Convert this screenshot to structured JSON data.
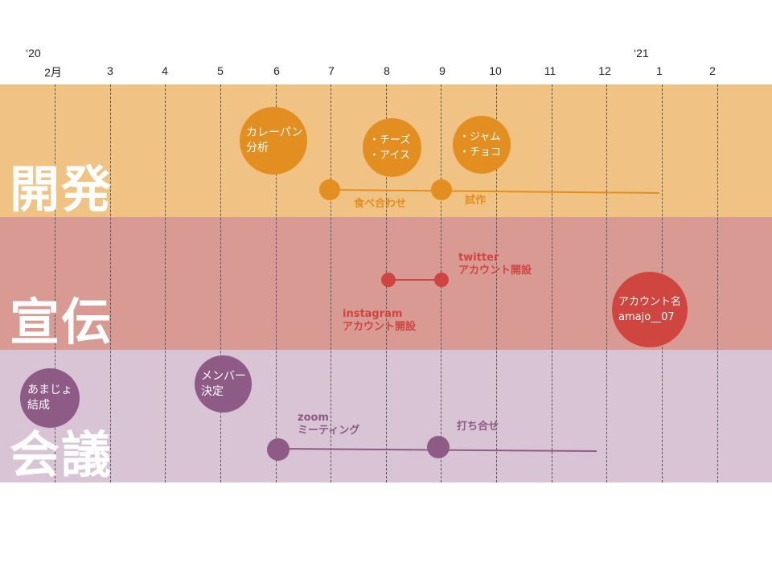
{
  "timeline": {
    "year_start": "‘20",
    "year_next": "‘21",
    "months": [
      "2月",
      "3",
      "4",
      "5",
      "6",
      "7",
      "8",
      "9",
      "10",
      "11",
      "12",
      "1",
      "2"
    ]
  },
  "lanes": {
    "development": {
      "title": "開発",
      "color": "#f0c384",
      "accent": "#e38e20",
      "bubbles": [
        {
          "lines": [
            "カレーパン",
            "分析"
          ]
        },
        {
          "lines": [
            "・チーズ",
            "・アイス"
          ]
        },
        {
          "lines": [
            "・ジャム",
            "・チョコ"
          ]
        }
      ],
      "milestones": [
        {
          "label": "食べ合わせ"
        },
        {
          "label": "試作"
        }
      ]
    },
    "promotion": {
      "title": "宣伝",
      "color": "#d99a94",
      "accent": "#cf4540",
      "twitter_label": {
        "line1": "twitter",
        "line2": "アカウント開設"
      },
      "instagram_label": {
        "line1": "instagram",
        "line2": "アカウント開設"
      },
      "bubble": {
        "lines": [
          "アカウント名",
          "amajo__07"
        ]
      }
    },
    "meeting": {
      "title": "会議",
      "color": "#d8c4d4",
      "accent": "#8e5a86",
      "bubbles": [
        {
          "lines": [
            "あまじょ",
            "結成"
          ]
        },
        {
          "lines": [
            "メンバー",
            "決定"
          ]
        }
      ],
      "zoom_label": {
        "line1": "zoom",
        "line2": "ミーティング"
      },
      "meetup_label": "打ち合せ"
    }
  }
}
